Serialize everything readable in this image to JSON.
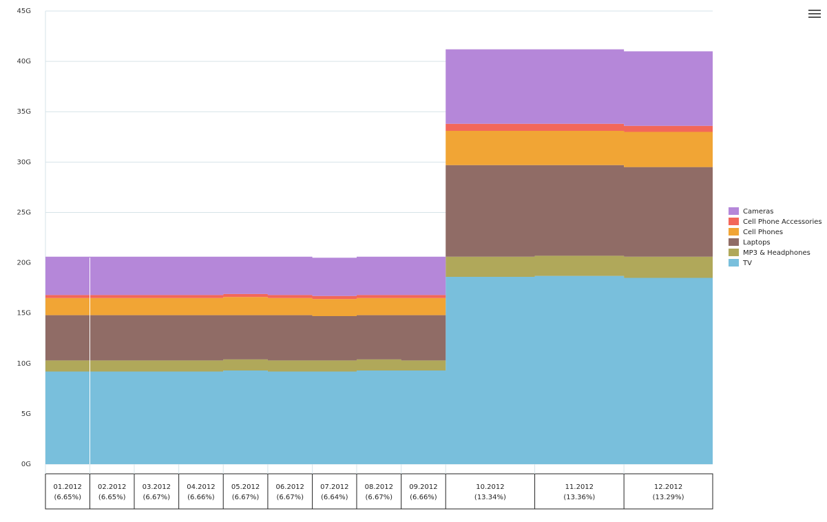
{
  "colors": {
    "TV": "#79bfdc",
    "MP3 & Headphones": "#b0a85a",
    "Laptops": "#906c66",
    "Cell Phones": "#f1a535",
    "Cell Phone Accessories": "#f3675a",
    "Cameras": "#b587d9",
    "grid": "#d6e3e8"
  },
  "menu": {
    "icon": "hamburger-menu-icon"
  },
  "chart_data": {
    "type": "area",
    "subtype": "stacked-variwide",
    "ylim": [
      0,
      45
    ],
    "y_ticks": [
      "0G",
      "5G",
      "10G",
      "15G",
      "20G",
      "25G",
      "30G",
      "35G",
      "40G",
      "45G"
    ],
    "grid": true,
    "legend_position": "right",
    "categories": [
      {
        "label": "01.2012",
        "share": "(6.65%)"
      },
      {
        "label": "02.2012",
        "share": "(6.65%)"
      },
      {
        "label": "03.2012",
        "share": "(6.67%)"
      },
      {
        "label": "04.2012",
        "share": "(6.66%)"
      },
      {
        "label": "05.2012",
        "share": "(6.67%)"
      },
      {
        "label": "06.2012",
        "share": "(6.67%)"
      },
      {
        "label": "07.2012",
        "share": "(6.64%)"
      },
      {
        "label": "08.2012",
        "share": "(6.67%)"
      },
      {
        "label": "09.2012",
        "share": "(6.66%)"
      },
      {
        "label": "10.2012",
        "share": "(13.34%)"
      },
      {
        "label": "11.2012",
        "share": "(13.36%)"
      },
      {
        "label": "12.2012",
        "share": "(13.29%)"
      }
    ],
    "weights": [
      6.65,
      6.65,
      6.67,
      6.66,
      6.67,
      6.67,
      6.64,
      6.67,
      6.66,
      13.34,
      13.36,
      13.29
    ],
    "series": [
      {
        "name": "TV",
        "values": [
          9.2,
          9.2,
          9.2,
          9.2,
          9.3,
          9.2,
          9.2,
          9.3,
          9.3,
          18.6,
          18.7,
          18.5
        ]
      },
      {
        "name": "MP3 & Headphones",
        "values": [
          1.1,
          1.1,
          1.1,
          1.1,
          1.1,
          1.1,
          1.1,
          1.1,
          1.0,
          2.0,
          2.0,
          2.1
        ]
      },
      {
        "name": "Laptops",
        "values": [
          4.5,
          4.5,
          4.5,
          4.5,
          4.4,
          4.5,
          4.4,
          4.4,
          4.5,
          9.1,
          9.0,
          8.9
        ]
      },
      {
        "name": "Cell Phones",
        "values": [
          1.7,
          1.7,
          1.7,
          1.7,
          1.8,
          1.7,
          1.7,
          1.7,
          1.7,
          3.4,
          3.4,
          3.5
        ]
      },
      {
        "name": "Cell Phone Accessories",
        "values": [
          0.3,
          0.3,
          0.3,
          0.3,
          0.3,
          0.3,
          0.3,
          0.3,
          0.3,
          0.7,
          0.7,
          0.6
        ]
      },
      {
        "name": "Cameras",
        "values": [
          3.8,
          3.8,
          3.8,
          3.8,
          3.7,
          3.8,
          3.8,
          3.8,
          3.8,
          7.4,
          7.4,
          7.4
        ]
      }
    ],
    "legend": [
      "Cameras",
      "Cell Phone Accessories",
      "Cell Phones",
      "Laptops",
      "MP3 & Headphones",
      "TV"
    ]
  }
}
